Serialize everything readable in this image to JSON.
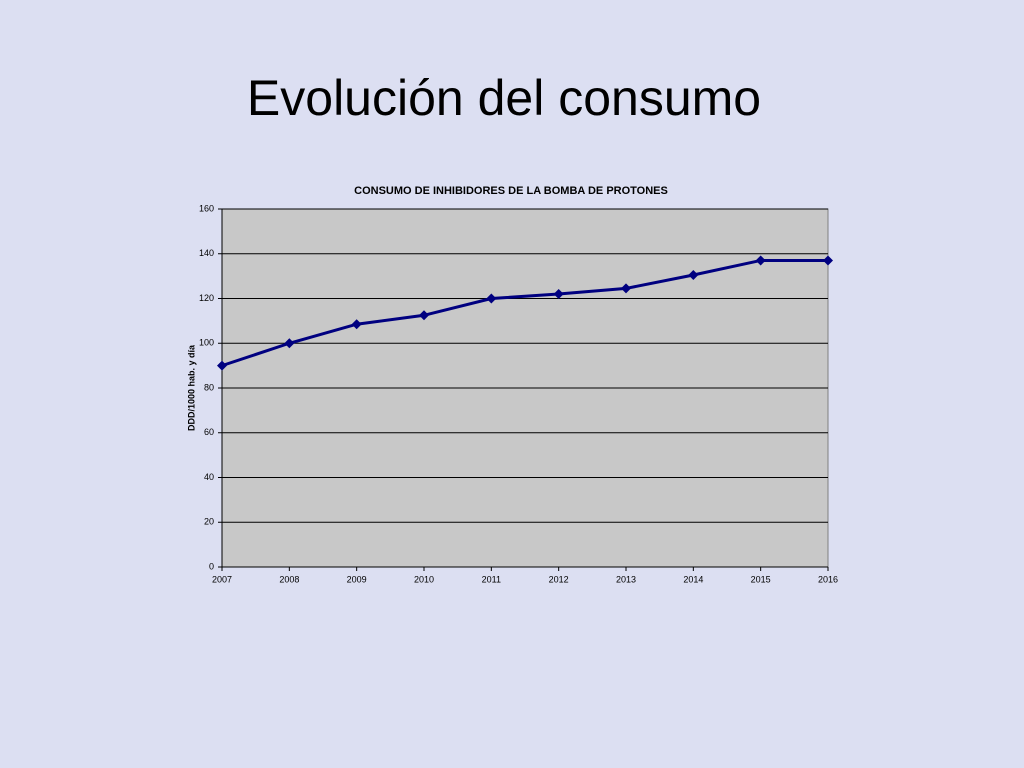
{
  "slide_title": "Evolución del consumo",
  "chart_data": {
    "type": "line",
    "title": "CONSUMO DE INHIBIDORES DE LA BOMBA DE PROTONES",
    "y_label": "DDD/1000 hab. y día",
    "categories": [
      "2007",
      "2008",
      "2009",
      "2010",
      "2011",
      "2012",
      "2013",
      "2014",
      "2015",
      "2016"
    ],
    "values": [
      90,
      100,
      108.5,
      112.5,
      120,
      122,
      124.5,
      130.5,
      137,
      137
    ],
    "color": "#000080",
    "ylim": [
      0,
      160
    ],
    "yticks": [
      0,
      20,
      40,
      60,
      80,
      100,
      120,
      140,
      160
    ],
    "grid": true
  }
}
